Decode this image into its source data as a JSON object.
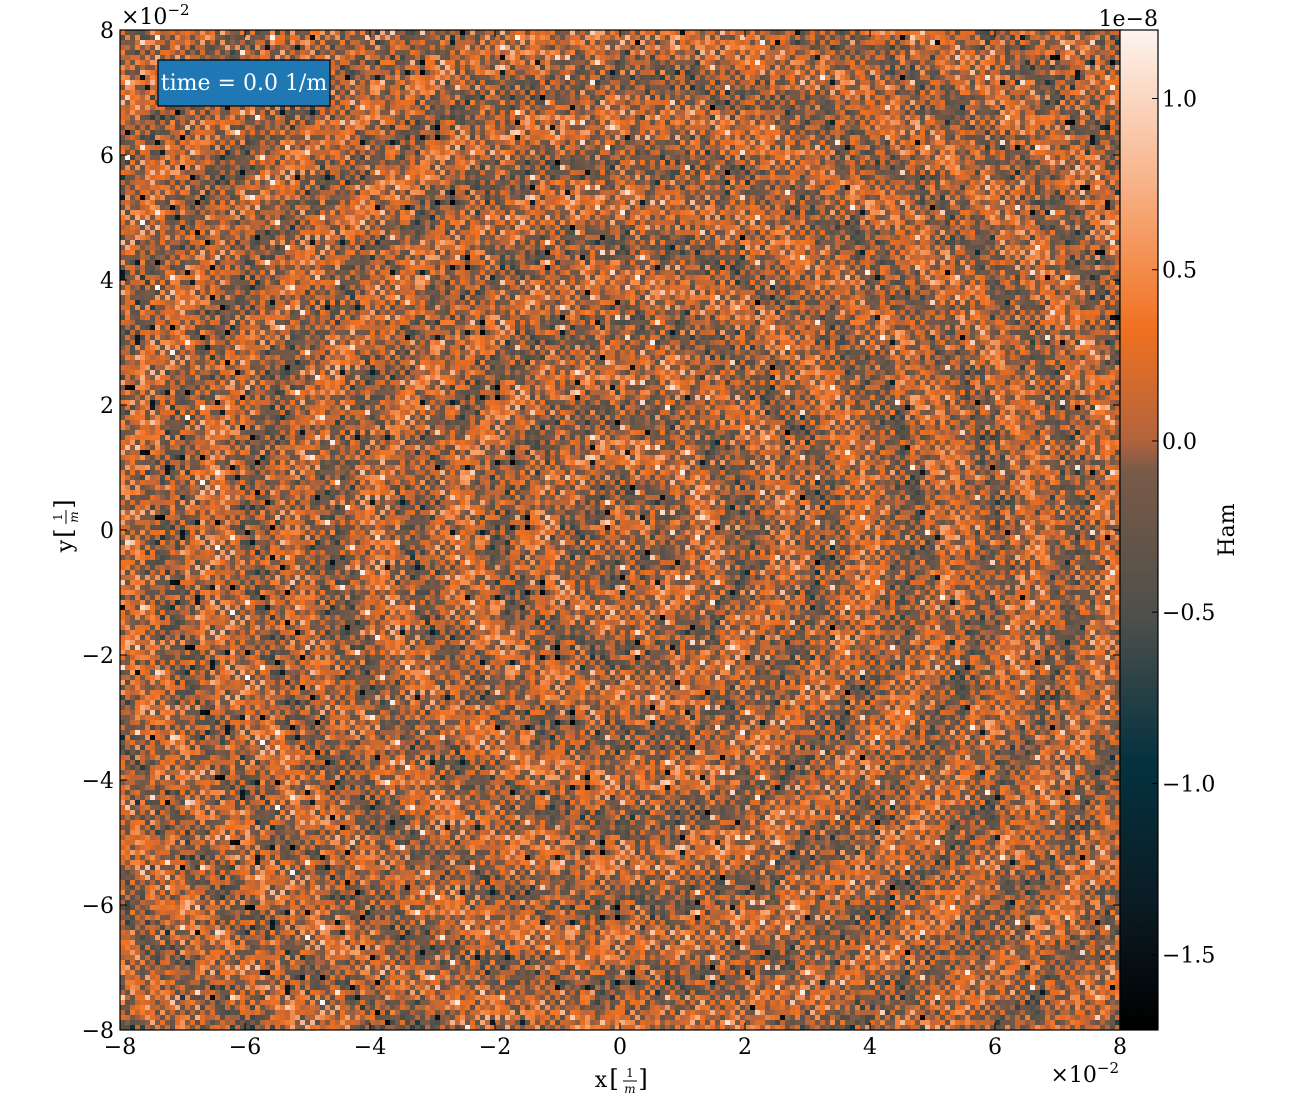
{
  "chart_data": {
    "type": "heatmap",
    "title": "",
    "annotation": "time = 0.0 1/m",
    "annotation_bg": "#1f77b4",
    "xlabel": "x",
    "xlabel_unit": "1/m",
    "ylabel": "y",
    "ylabel_unit": "1/m",
    "xlim": [
      -8,
      8
    ],
    "ylim": [
      -8,
      8
    ],
    "x_ticks": [
      -8,
      -6,
      -4,
      -2,
      0,
      2,
      4,
      6,
      8
    ],
    "y_ticks": [
      -8,
      -6,
      -4,
      -2,
      0,
      2,
      4,
      6,
      8
    ],
    "x_tick_labels": [
      "−8",
      "−6",
      "−4",
      "−2",
      "0",
      "2",
      "4",
      "6",
      "8"
    ],
    "y_tick_labels": [
      "−8",
      "−6",
      "−4",
      "−2",
      "0",
      "2",
      "4",
      "6",
      "8"
    ],
    "x_offset_text": "×10",
    "x_offset_exponent": "−2",
    "y_offset_text": "×10",
    "y_offset_exponent": "−2",
    "grid_resolution": 200,
    "pattern": "checkerboard noise with faint concentric rings",
    "colorbar": {
      "label": "Ham",
      "offset_text": "1e−8",
      "vmin": -1.72,
      "vmax": 1.2,
      "ticks": [
        -1.5,
        -1.0,
        -0.5,
        0.0,
        0.5,
        1.0
      ],
      "tick_labels": [
        "−1.5",
        "−1.0",
        "−0.5",
        "0.0",
        "0.5",
        "1.0"
      ],
      "colors": [
        "#000000",
        "#053240",
        "#4c4f4a",
        "#b2643c",
        "#f07020",
        "#f7b48a",
        "#fdf4ef"
      ]
    }
  }
}
